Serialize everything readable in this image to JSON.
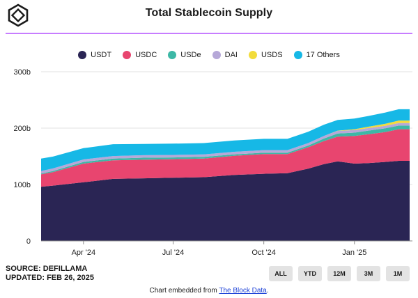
{
  "header": {
    "title": "Total Stablecoin Supply"
  },
  "colors": {
    "rule": "#c77dff"
  },
  "chart_data": {
    "type": "area",
    "stacked": true,
    "legend_position": "top",
    "grid": "horizontal",
    "x_ticks": [
      "Apr '24",
      "Jul '24",
      "Oct '24",
      "Jan '25"
    ],
    "x_tick_dates": [
      "2024-04-01",
      "2024-07-01",
      "2024-10-01",
      "2025-01-01"
    ],
    "x_range": [
      "2024-02-18",
      "2025-02-26"
    ],
    "y_ticks": [
      "0",
      "100b",
      "200b",
      "300b"
    ],
    "y_tick_values": [
      0,
      100,
      200,
      300
    ],
    "ylim": [
      0,
      300
    ],
    "x": [
      "2024-02-18",
      "2024-03-01",
      "2024-04-01",
      "2024-05-01",
      "2024-06-01",
      "2024-07-01",
      "2024-08-01",
      "2024-09-01",
      "2024-10-01",
      "2024-10-25",
      "2024-11-15",
      "2024-12-01",
      "2024-12-15",
      "2025-01-01",
      "2025-01-15",
      "2025-02-01",
      "2025-02-15",
      "2025-02-26"
    ],
    "series": [
      {
        "name": "USDT",
        "color": "#2a2554",
        "values": [
          96,
          98,
          104,
          110,
          111,
          112,
          113,
          117,
          119,
          120,
          128,
          136,
          141,
          137,
          138,
          140,
          142,
          142
        ]
      },
      {
        "name": "USDC",
        "color": "#e8456f",
        "values": [
          22,
          24,
          33,
          33,
          33,
          33,
          33,
          34,
          35,
          34,
          38,
          41,
          44,
          49,
          51,
          53,
          56,
          56
        ]
      },
      {
        "name": "USDe",
        "color": "#3db8a6",
        "values": [
          1.5,
          2,
          3,
          3,
          3.5,
          3,
          3,
          2.5,
          2.5,
          2.5,
          3,
          4.5,
          5.5,
          6,
          6.5,
          6.5,
          6.5,
          6.5
        ]
      },
      {
        "name": "DAI",
        "color": "#b6a8d8",
        "values": [
          4.5,
          4.5,
          4.5,
          4.5,
          4.5,
          4.5,
          4.5,
          4.5,
          4.5,
          4.5,
          4.5,
          4.5,
          4.5,
          4.5,
          4.5,
          4.5,
          4.5,
          4.5
        ]
      },
      {
        "name": "USDS",
        "color": "#f2dc3c",
        "values": [
          0,
          0,
          0,
          0,
          0,
          0,
          0,
          0,
          0,
          0,
          0,
          0,
          0.5,
          1.5,
          2.5,
          3.5,
          4.5,
          4.5
        ]
      },
      {
        "name": "17 Others",
        "color": "#16b8e6",
        "values": [
          22,
          21,
          20,
          21,
          20,
          20,
          20,
          20,
          20,
          20,
          20,
          20,
          19,
          19,
          19,
          20,
          20,
          20
        ]
      }
    ]
  },
  "footer": {
    "source": "SOURCE: DEFILLAMA",
    "updated": "UPDATED: FEB 26, 2025",
    "embed_prefix": "Chart embedded from ",
    "embed_link": "The Block Data",
    "embed_suffix": "."
  },
  "ranges": {
    "all": "ALL",
    "ytd": "YTD",
    "m12": "12M",
    "m3": "3M",
    "m1": "1M"
  }
}
